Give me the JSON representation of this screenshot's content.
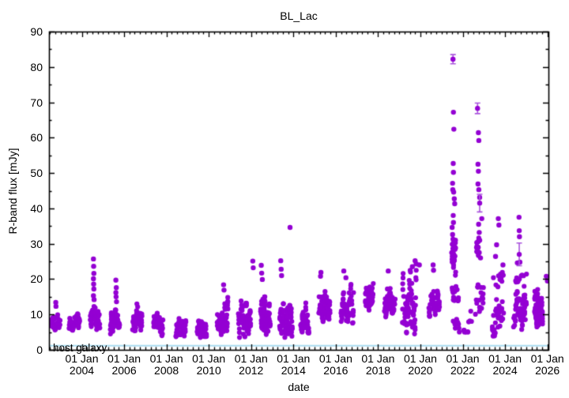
{
  "chart_data": {
    "type": "scatter",
    "title": "BL_Lac",
    "xlabel": "date",
    "ylabel": "R-band flux [mJy]",
    "legend": "none",
    "grid": false,
    "marker": "filled-circle",
    "series_color": "#9400d3",
    "errorbar_color": "#aa55dd",
    "host_galaxy": {
      "label": "host galaxy",
      "flux": 1.2,
      "line_color": "#aadcf0"
    },
    "x_axis": {
      "min_year": 2002.45,
      "max_year": 2026.05,
      "minor_step_years": 0.25,
      "major_ticks": [
        {
          "line1": "01 Jan",
          "line2": "2004",
          "year": 2004
        },
        {
          "line1": "01 Jan",
          "line2": "2006",
          "year": 2006
        },
        {
          "line1": "01 Jan",
          "line2": "2008",
          "year": 2008
        },
        {
          "line1": "01 Jan",
          "line2": "2010",
          "year": 2010
        },
        {
          "line1": "01 Jan",
          "line2": "2012",
          "year": 2012
        },
        {
          "line1": "01 Jan",
          "line2": "2014",
          "year": 2014
        },
        {
          "line1": "01 Jan",
          "line2": "2016",
          "year": 2016
        },
        {
          "line1": "01 Jan",
          "line2": "2018",
          "year": 2018
        },
        {
          "line1": "01 Jan",
          "line2": "2020",
          "year": 2020
        },
        {
          "line1": "01 Jan",
          "line2": "2022",
          "year": 2022
        },
        {
          "line1": "01 Jan",
          "line2": "2024",
          "year": 2024
        },
        {
          "line1": "01 Jan",
          "line2": "2026",
          "year": 2026
        }
      ]
    },
    "y_axis": {
      "min": 0,
      "max": 90,
      "major_step": 10,
      "minor_step": 5,
      "tick_labels": [
        "0",
        "10",
        "20",
        "30",
        "40",
        "50",
        "60",
        "70",
        "80",
        "90"
      ]
    },
    "points": [
      [
        2002.77,
        13.4
      ],
      [
        2002.78,
        12.3
      ],
      [
        2004.55,
        25.7
      ],
      [
        2004.56,
        23.6
      ],
      [
        2004.57,
        21.6
      ],
      [
        2004.55,
        20.1
      ],
      [
        2004.56,
        18.6
      ],
      [
        2004.57,
        17.2
      ],
      [
        2004.55,
        15.3
      ],
      [
        2004.58,
        14.2
      ],
      [
        2005.61,
        19.7
      ],
      [
        2005.63,
        17.6
      ],
      [
        2005.61,
        16.2
      ],
      [
        2005.62,
        15.0
      ],
      [
        2005.64,
        13.6
      ],
      [
        2010.7,
        18.4
      ],
      [
        2010.72,
        16.9
      ],
      [
        2012.08,
        25.1
      ],
      [
        2012.1,
        23.2
      ],
      [
        2012.48,
        23.9
      ],
      [
        2012.5,
        21.7
      ],
      [
        2012.53,
        19.9
      ],
      [
        2013.4,
        25.2
      ],
      [
        2013.42,
        22.8
      ],
      [
        2013.44,
        21.0
      ],
      [
        2013.84,
        34.6
      ],
      [
        2015.28,
        20.8
      ],
      [
        2015.3,
        21.9
      ],
      [
        2016.38,
        22.3
      ],
      [
        2016.48,
        20.4
      ],
      [
        2018.48,
        22.3
      ],
      [
        2019.62,
        23.5
      ],
      [
        2019.75,
        25.2
      ],
      [
        2019.8,
        24.3
      ],
      [
        2019.95,
        24.0
      ],
      [
        2020.6,
        24.0
      ],
      [
        2020.62,
        22.5
      ],
      [
        2021.56,
        67.2
      ],
      [
        2021.58,
        62.4
      ],
      [
        2021.55,
        52.7
      ],
      [
        2021.56,
        50.2
      ],
      [
        2021.52,
        47.1
      ],
      [
        2021.53,
        45.3
      ],
      [
        2021.57,
        44.6
      ],
      [
        2021.6,
        42.7
      ],
      [
        2021.62,
        41.3
      ],
      [
        2021.55,
        38.0
      ],
      [
        2021.56,
        36.0
      ],
      [
        2021.5,
        34.6
      ],
      [
        2021.52,
        32.6
      ],
      [
        2021.54,
        31.3
      ],
      [
        2021.57,
        30.4
      ],
      [
        2022.74,
        61.4
      ],
      [
        2022.76,
        59.2
      ],
      [
        2022.72,
        52.5
      ],
      [
        2022.74,
        50.5
      ],
      [
        2022.72,
        46.9
      ],
      [
        2022.76,
        45.3
      ],
      [
        2022.8,
        43.1
      ],
      [
        2022.9,
        37.1
      ],
      [
        2022.75,
        35.5
      ],
      [
        2022.78,
        33.2
      ],
      [
        2022.8,
        31.0
      ],
      [
        2022.73,
        29.0
      ],
      [
        2022.78,
        27.5
      ],
      [
        2022.84,
        26.0
      ],
      [
        2023.55,
        26.4
      ],
      [
        2023.6,
        29.7
      ],
      [
        2023.68,
        37.1
      ],
      [
        2023.71,
        35.3
      ],
      [
        2023.9,
        24.0
      ],
      [
        2024.58,
        24.6
      ],
      [
        2024.66,
        37.5
      ],
      [
        2024.67,
        33.7
      ],
      [
        2024.68,
        32.0
      ],
      [
        2024.7,
        24.8
      ],
      [
        2025.95,
        20.8
      ],
      [
        2026.0,
        19.5
      ]
    ],
    "points_with_errors": [
      [
        2021.54,
        82.2,
        1.3
      ],
      [
        2022.7,
        68.3,
        1.5
      ],
      [
        2022.8,
        41.5,
        2.5
      ],
      [
        2024.67,
        27.0,
        3.2
      ]
    ],
    "season_clusters_t0_t1_n_fmin_fmax": [
      [
        2002.5,
        2003.1,
        22,
        5.5,
        11
      ],
      [
        2003.4,
        2004.15,
        34,
        5,
        11.5
      ],
      [
        2004.4,
        2005.05,
        30,
        5,
        13
      ],
      [
        2005.35,
        2006.1,
        40,
        4.5,
        12
      ],
      [
        2006.4,
        2007.15,
        42,
        5,
        13
      ],
      [
        2007.4,
        2008.2,
        42,
        4,
        11
      ],
      [
        2008.45,
        2009.25,
        38,
        3.5,
        9
      ],
      [
        2009.45,
        2010.2,
        38,
        3.5,
        8.5
      ],
      [
        2010.4,
        2011.25,
        48,
        4,
        15
      ],
      [
        2011.4,
        2012.3,
        52,
        3.5,
        15
      ],
      [
        2012.45,
        2013.25,
        52,
        3,
        15
      ],
      [
        2013.35,
        2014.25,
        50,
        3,
        15
      ],
      [
        2014.35,
        2015.0,
        38,
        4.5,
        13.5
      ],
      [
        2015.2,
        2016.1,
        45,
        5,
        18
      ],
      [
        2016.25,
        2017.2,
        45,
        6.5,
        18.5
      ],
      [
        2017.4,
        2018.05,
        34,
        10.5,
        19
      ],
      [
        2018.3,
        2019.1,
        44,
        9,
        20.5
      ],
      [
        2019.15,
        2020.2,
        55,
        4.5,
        22.5
      ],
      [
        2020.4,
        2021.1,
        30,
        9.5,
        21
      ],
      [
        2021.48,
        2021.8,
        24,
        23,
        31
      ],
      [
        2021.5,
        2022.15,
        12,
        12,
        22
      ],
      [
        2021.55,
        2022.1,
        8,
        5,
        11
      ],
      [
        2022.05,
        2022.5,
        8,
        5,
        14
      ],
      [
        2022.6,
        2023.2,
        16,
        8,
        24
      ],
      [
        2022.65,
        2022.98,
        8,
        25,
        33
      ],
      [
        2023.4,
        2024.3,
        30,
        3.5,
        16
      ],
      [
        2023.45,
        2024.25,
        10,
        17,
        23
      ],
      [
        2024.4,
        2025.3,
        42,
        5,
        18
      ],
      [
        2024.5,
        2025.25,
        8,
        19,
        23
      ],
      [
        2025.4,
        2026.05,
        55,
        6.5,
        18
      ]
    ]
  }
}
